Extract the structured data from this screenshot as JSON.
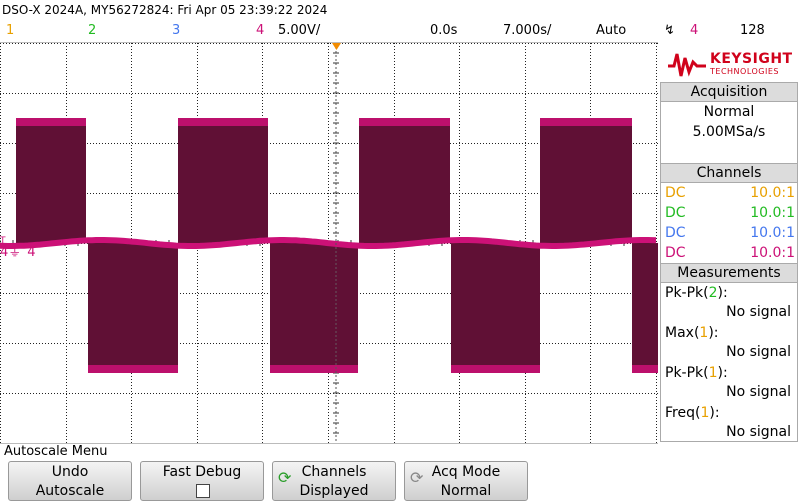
{
  "title": "DSO-X 2024A, MY56272824: Fri Apr 05 23:39:22 2024",
  "status": {
    "ch1": "1",
    "ch2": "2",
    "ch3": "3",
    "ch4": "4",
    "volts_div": "5.00V/",
    "delay": "0.0s",
    "time_div": "7.000s/",
    "trigger_mode": "Auto",
    "trigger_source": "4",
    "trigger_level": "128"
  },
  "logo": {
    "brand": "KEYSIGHT",
    "sub": "TECHNOLOGIES"
  },
  "acquisition": {
    "header": "Acquisition",
    "mode": "Normal",
    "rate": "5.00MSa/s"
  },
  "channels": {
    "header": "Channels",
    "rows": [
      {
        "coupling": "DC",
        "ratio": "10.0:1",
        "color": "#e8a000"
      },
      {
        "coupling": "DC",
        "ratio": "10.0:1",
        "color": "#22bb22"
      },
      {
        "coupling": "DC",
        "ratio": "10.0:1",
        "color": "#4477ee"
      },
      {
        "coupling": "DC",
        "ratio": "10.0:1",
        "color": "#cc1177"
      }
    ]
  },
  "measurements": {
    "header": "Measurements",
    "items": [
      {
        "label": "Pk-Pk(",
        "src": "2",
        "close": "):",
        "value": "No signal",
        "src_color": "#22bb22"
      },
      {
        "label": "Max(",
        "src": "1",
        "close": "):",
        "value": "No signal",
        "src_color": "#e8a000"
      },
      {
        "label": "Pk-Pk(",
        "src": "1",
        "close": "):",
        "value": "No signal",
        "src_color": "#e8a000"
      },
      {
        "label": "Freq(",
        "src": "1",
        "close": "):",
        "value": "No signal",
        "src_color": "#e8a000"
      }
    ]
  },
  "ground_marker": "4",
  "softkeys": {
    "menu_title": "Autoscale Menu",
    "keys": [
      {
        "line1": "Undo",
        "line2": "Autoscale"
      },
      {
        "line1": "Fast Debug",
        "line2": ""
      },
      {
        "line1": "Channels",
        "line2": "Displayed"
      },
      {
        "line1": "Acq Mode",
        "line2": "Normal"
      }
    ]
  },
  "colors": {
    "trace": "#cc1177",
    "trace_dark": "#5a0f30"
  }
}
